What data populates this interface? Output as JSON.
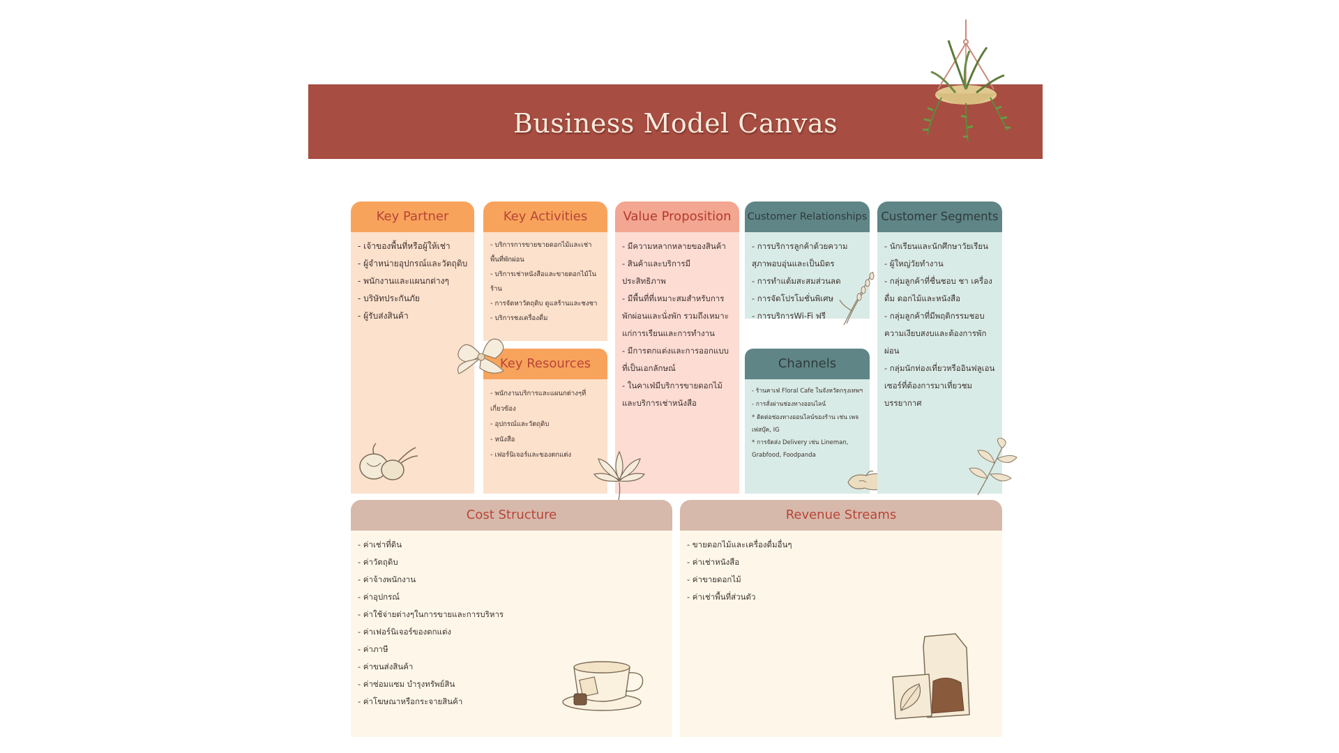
{
  "title": "Business Model Canvas",
  "colors": {
    "banner": "#a84d42",
    "orange_head": "#f8a35c",
    "orange_body": "#fce1cc",
    "pink_head": "#f3a691",
    "pink_body": "#fcdcd3",
    "teal_head": "#5f8587",
    "teal_body": "#d9ebe6",
    "tan_head": "#d6b9ab",
    "cream_body": "#fef7e9",
    "red_text": "#b74537",
    "dark_text": "#2f3a3b"
  },
  "key_partner": {
    "title": "Key Partner",
    "items": [
      "- เจ้าของพื้นที่หรือผู้ให้เช่า",
      "- ผู้จำหน่ายอุปกรณ์และวัตถุดิบ",
      "- พนักงานและแผนกต่างๆ",
      "- บริษัทประกันภัย",
      "- ผู้รับส่งสินค้า"
    ]
  },
  "key_activities": {
    "title": "Key Activities",
    "items": [
      "- บริการการขายขายดอกไม้และเช่าพื้นที่พักผ่อน",
      "- บริการเช่าหนังสือและขายดอกไม้ในร้าน",
      "- การจัดหาวัตถุดิบ ดูแลร้านและชงชา",
      "- บริการชงเครื่องดื่ม"
    ]
  },
  "key_resources": {
    "title": "Key Resources",
    "items": [
      "- พนักงานบริการและแผนกต่างๆที่เกี่ยวข้อง",
      "- อุปกรณ์และวัตถุดิบ",
      "- หนังสือ",
      "- เฟอร์นิเจอร์และของตกแต่ง"
    ]
  },
  "value_proposition": {
    "title": "Value Proposition",
    "items": [
      "- มีความหลากหลายของสินค้า",
      "- สินค้าและบริการมีประสิทธิภาพ",
      "- มีพื้นที่ที่เหมาะสมสำหรับการพักผ่อนและนั่งพัก รวมถึงเหมาะแก่การเรียนและการทำงาน",
      "- มีการตกแต่งและการออกแบบที่เป็นเอกลักษณ์",
      "- ในคาเฟ่มีบริการขายดอกไม้และบริการเช่าหนังสือ"
    ]
  },
  "customer_relationships": {
    "title": "Customer Relationships",
    "items": [
      "- การบริการลูกค้าด้วยความสุภาพอบอุ่นและเป็นมิตร",
      "- การทำแต้มสะสมส่วนลด",
      "- การจัดโปรโมชั่นพิเศษ",
      "- การบริการWi-Fi ฟรี"
    ]
  },
  "channels": {
    "title": "Channels",
    "items": [
      "- ร้านคาเฟ่ Floral Cafe ในจังหวัดกรุงเทพฯ",
      "- การสั่งผ่านช่องทางออนไลน์",
      "  * ติดต่อช่องทางออนไลน์ของร้าน เช่น เพจเฟสบุ๊ค, IG",
      "  * การจัดส่ง Delivery เช่น Lineman, Grabfood, Foodpanda"
    ]
  },
  "customer_segments": {
    "title": "Customer Segments",
    "items": [
      "- นักเรียนและนักศึกษาวัยเรียน",
      "- ผู้ใหญ่วัยทำงาน",
      "- กลุ่มลูกค้าที่ชื่นชอบ ชา เครื่องดื่ม ดอกไม้และหนังสือ",
      "- กลุ่มลูกค้าที่มีพฤติกรรมชอบความเงียบสงบและต้องการพักผ่อน",
      "- กลุ่มนักท่องเที่ยวหรืออินฟลูเอนเซอร์ที่ต้องการมาเที่ยวชมบรรยากาศ"
    ]
  },
  "cost_structure": {
    "title": "Cost Structure",
    "items": [
      "- ค่าเช่าที่ดิน",
      "- ค่าวัตถุดิบ",
      "- ค่าจ้างพนักงาน",
      "- ค่าอุปกรณ์",
      "- ค่าใช้จ่ายต่างๆในการขายและการบริหาร",
      "- ค่าเฟอร์นิเจอร์ของตกแต่ง",
      "- ค่าภาษี",
      "- ค่าขนส่งสินค้า",
      "- ค่าซ่อมแซม บำรุงทรัพย์สิน",
      "- ค่าโฆษณาหรือกระจายสินค้า"
    ]
  },
  "revenue_streams": {
    "title": "Revenue Streams",
    "items": [
      "- ขายดอกไม้และเครื่องดื่มอื่นๆ",
      "- ค่าเช่าหนังสือ",
      "- ค่าขายดอกไม้",
      "- ค่าเช่าพื้นที่ส่วนตัว"
    ]
  },
  "icons": [
    "hanging-plant-icon",
    "hibiscus-flower-icon",
    "lotus-flower-icon",
    "lavender-sprig-icon",
    "ginger-root-icon",
    "leaf-branch-icon",
    "garlic-onion-icon",
    "tea-cup-icon",
    "tea-bag-icon"
  ]
}
